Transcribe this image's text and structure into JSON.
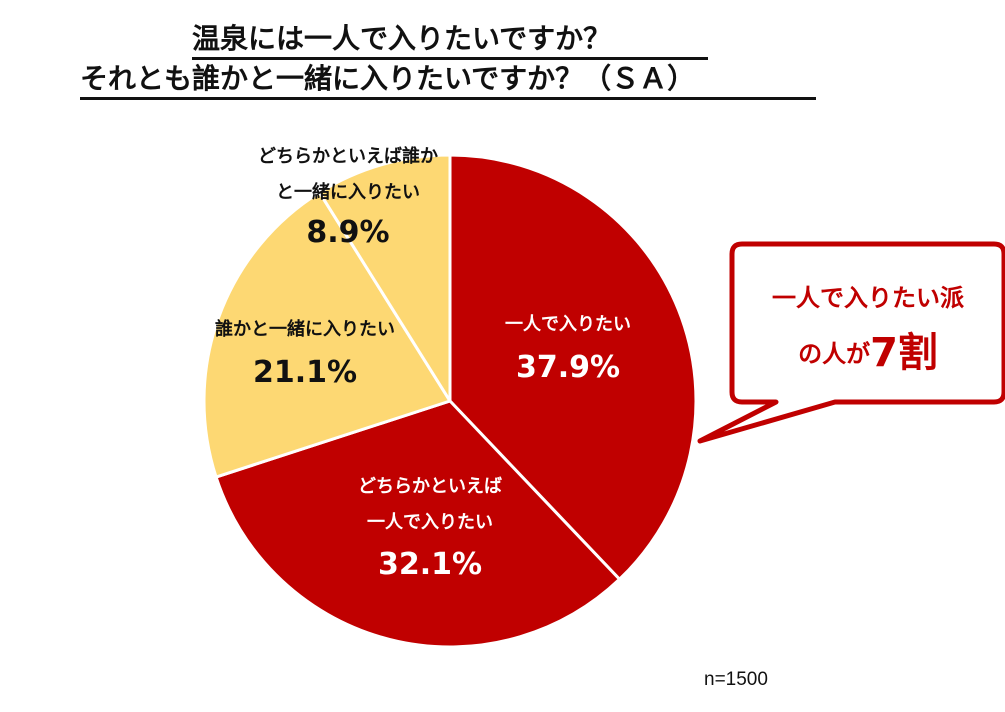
{
  "title": {
    "line1": "温泉には一人で入りたいですか？",
    "line2": "それとも誰かと一緒に入りたいですか？（ＳＡ）"
  },
  "chart_data": {
    "type": "pie",
    "slices": [
      {
        "label_lines": [
          "一人で入りたい"
        ],
        "value": 37.9,
        "value_label": "37.9%",
        "color": "#c00000",
        "text_color": "#ffffff"
      },
      {
        "label_lines": [
          "どちらかといえば",
          "一人で入りたい"
        ],
        "value": 32.1,
        "value_label": "32.1%",
        "color": "#c00000",
        "text_color": "#ffffff"
      },
      {
        "label_lines": [
          "誰かと一緒に入りたい"
        ],
        "value": 21.1,
        "value_label": "21.1%",
        "color": "#fdd873",
        "text_color": "#111111"
      },
      {
        "label_lines": [
          "どちらかといえば誰か",
          "と一緒に入りたい"
        ],
        "value": 8.9,
        "value_label": "8.9%",
        "color": "#fdd873",
        "text_color": "#111111"
      }
    ],
    "start": "12 o'clock",
    "direction": "clockwise"
  },
  "callout": {
    "line1": "一人で入りたい派",
    "line2_prefix": "の人が",
    "line2_big": "7割",
    "color": "#c00000"
  },
  "sample_size": "n=1500"
}
